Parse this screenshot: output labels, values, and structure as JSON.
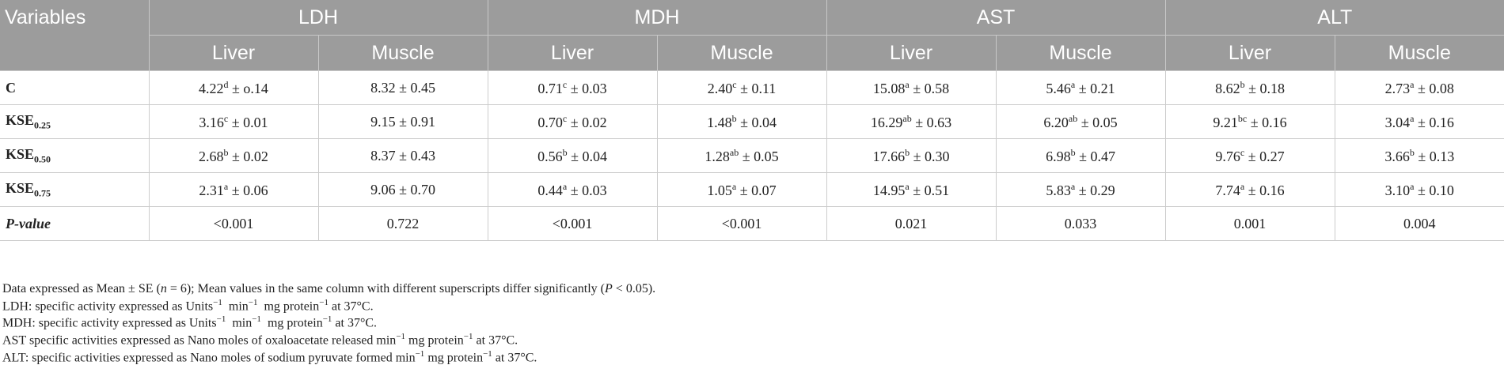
{
  "table": {
    "variables_label": "Variables",
    "groups": [
      "LDH",
      "MDH",
      "AST",
      "ALT"
    ],
    "subheaders": [
      "Liver",
      "Muscle",
      "Liver",
      "Muscle",
      "Liver",
      "Muscle",
      "Liver",
      "Muscle"
    ],
    "rows": [
      {
        "label_main": "C",
        "label_sub": "",
        "italic": false,
        "cells": [
          {
            "v": "4.22",
            "sup": "d",
            "rest": " ± o.14"
          },
          {
            "v": "8.32 ± 0.45",
            "sup": "",
            "rest": ""
          },
          {
            "v": "0.71",
            "sup": "c",
            "rest": " ± 0.03"
          },
          {
            "v": "2.40",
            "sup": "c",
            "rest": " ± 0.11"
          },
          {
            "v": "15.08",
            "sup": "a",
            "rest": " ± 0.58"
          },
          {
            "v": "5.46",
            "sup": "a",
            "rest": " ± 0.21"
          },
          {
            "v": "8.62",
            "sup": "b",
            "rest": " ± 0.18"
          },
          {
            "v": "2.73",
            "sup": "a",
            "rest": " ± 0.08"
          }
        ]
      },
      {
        "label_main": "KSE",
        "label_sub": "0.25",
        "italic": false,
        "cells": [
          {
            "v": "3.16",
            "sup": "c",
            "rest": " ± 0.01"
          },
          {
            "v": "9.15 ± 0.91",
            "sup": "",
            "rest": ""
          },
          {
            "v": "0.70",
            "sup": "c",
            "rest": " ± 0.02"
          },
          {
            "v": "1.48",
            "sup": "b",
            "rest": " ± 0.04"
          },
          {
            "v": "16.29",
            "sup": "ab",
            "rest": " ± 0.63"
          },
          {
            "v": "6.20",
            "sup": "ab",
            "rest": " ± 0.05"
          },
          {
            "v": "9.21",
            "sup": "bc",
            "rest": " ± 0.16"
          },
          {
            "v": "3.04",
            "sup": "a",
            "rest": " ± 0.16"
          }
        ]
      },
      {
        "label_main": "KSE",
        "label_sub": "0.50",
        "italic": false,
        "cells": [
          {
            "v": "2.68",
            "sup": "b",
            "rest": " ± 0.02"
          },
          {
            "v": "8.37 ± 0.43",
            "sup": "",
            "rest": ""
          },
          {
            "v": "0.56",
            "sup": "b",
            "rest": " ± 0.04"
          },
          {
            "v": "1.28",
            "sup": "ab",
            "rest": " ± 0.05"
          },
          {
            "v": "17.66",
            "sup": "b",
            "rest": " ± 0.30"
          },
          {
            "v": "6.98",
            "sup": "b",
            "rest": " ± 0.47"
          },
          {
            "v": "9.76",
            "sup": "c",
            "rest": " ± 0.27"
          },
          {
            "v": "3.66",
            "sup": "b",
            "rest": " ± 0.13"
          }
        ]
      },
      {
        "label_main": "KSE",
        "label_sub": "0.75",
        "italic": false,
        "cells": [
          {
            "v": "2.31",
            "sup": "a",
            "rest": " ± 0.06"
          },
          {
            "v": "9.06 ± 0.70",
            "sup": "",
            "rest": ""
          },
          {
            "v": "0.44",
            "sup": "a",
            "rest": " ± 0.03"
          },
          {
            "v": "1.05",
            "sup": "a",
            "rest": " ± 0.07"
          },
          {
            "v": "14.95",
            "sup": "a",
            "rest": " ± 0.51"
          },
          {
            "v": "5.83",
            "sup": "a",
            "rest": " ± 0.29"
          },
          {
            "v": "7.74",
            "sup": "a",
            "rest": " ± 0.16"
          },
          {
            "v": "3.10",
            "sup": "a",
            "rest": " ± 0.10"
          }
        ]
      },
      {
        "label_main": "P",
        "label_sub": "",
        "label_tail": "-value",
        "italic": true,
        "cells": [
          {
            "v": "<0.001",
            "sup": "",
            "rest": ""
          },
          {
            "v": "0.722",
            "sup": "",
            "rest": ""
          },
          {
            "v": "<0.001",
            "sup": "",
            "rest": ""
          },
          {
            "v": "<0.001",
            "sup": "",
            "rest": ""
          },
          {
            "v": "0.021",
            "sup": "",
            "rest": ""
          },
          {
            "v": "0.033",
            "sup": "",
            "rest": ""
          },
          {
            "v": "0.001",
            "sup": "",
            "rest": ""
          },
          {
            "v": "0.004",
            "sup": "",
            "rest": ""
          }
        ]
      }
    ]
  },
  "notes": {
    "n1": {
      "a": "Data expressed as Mean ± SE (",
      "b": "n",
      "c": " = 6); Mean values in the same column with different superscripts differ significantly (",
      "d": "P",
      "e": " < 0.05)."
    },
    "n2": {
      "a": "LDH: specific activity expressed as Units",
      "b": "min",
      "c": "mg protein",
      "d": " at 37°C."
    },
    "n3": {
      "a": "MDH: specific activity expressed as Units",
      "b": "min",
      "c": "mg protein",
      "d": " at 37°C."
    },
    "n4": {
      "a": "AST specific activities expressed as Nano moles of oxaloacetate released min",
      "b": " mg protein",
      "c": " at 37°C."
    },
    "n5": {
      "a": "ALT: specific activities expressed as Nano moles of sodium pyruvate formed min",
      "b": " mg protein",
      "c": " at 37°C."
    },
    "exp": "−1"
  },
  "colors": {
    "header_bg": "#9c9c9c",
    "header_text": "#ffffff",
    "grid": "#cccccc",
    "text": "#222222"
  }
}
